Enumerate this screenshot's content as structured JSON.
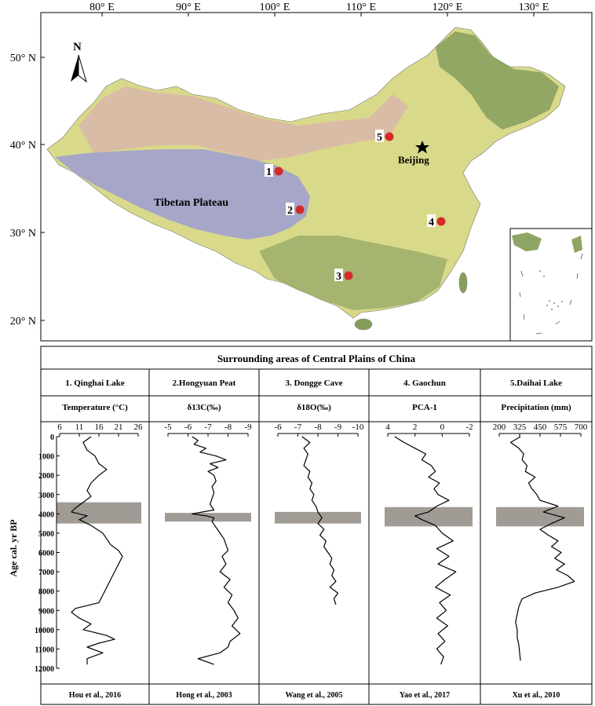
{
  "map": {
    "lon_labels": [
      "80° E",
      "90° E",
      "100° E",
      "110° E",
      "120° E",
      "130° E"
    ],
    "lat_labels": [
      "50° N",
      "40° N",
      "30° N",
      "20° N"
    ],
    "north_label": "N",
    "region_label": "Tibetan Plateau",
    "city_label": "Beijing",
    "sites": [
      {
        "id": "1"
      },
      {
        "id": "2"
      },
      {
        "id": "3"
      },
      {
        "id": "4"
      },
      {
        "id": "5"
      }
    ],
    "colors": {
      "site_marker": "#d42a2a",
      "ocean": "#ffffff",
      "lowland": "#d9d98a",
      "plateau": "#9fa0c8",
      "desert": "#d9b9a6",
      "forest": "#7f9a58"
    }
  },
  "panel": {
    "title": "Surrounding areas of Central Plains of China",
    "y_axis_label": "Age cal. yr BP",
    "highlight_color": "#a09b95"
  },
  "chart_data": [
    {
      "type": "line",
      "site": "1. Qinghai  Lake",
      "xlabel": "Temperature (°C)",
      "source": "Hou et al., 2016",
      "x_ticks": [
        "6",
        "11",
        "16",
        "21",
        "26"
      ],
      "xlim": [
        6,
        26
      ],
      "x_reversed": false,
      "y_ticks": [
        "0",
        "1000",
        "2000",
        "3000",
        "4000",
        "5000",
        "6000",
        "7000",
        "8000",
        "9000",
        "10000",
        "11000",
        "12000"
      ],
      "ylim": [
        0,
        12000
      ],
      "highlight": [
        3400,
        4500
      ],
      "age": [
        0,
        300,
        700,
        1000,
        1400,
        1700,
        2000,
        2400,
        2800,
        3100,
        3400,
        3700,
        3900,
        4100,
        4300,
        4600,
        5000,
        5300,
        5600,
        5900,
        6200,
        6600,
        7000,
        7400,
        7800,
        8200,
        8600,
        8900,
        9100,
        9400,
        9700,
        10000,
        10300,
        10500,
        10700,
        10900,
        11200,
        11500,
        11800
      ],
      "values": [
        14,
        12,
        13,
        15,
        16,
        18,
        16,
        14,
        13,
        14,
        12,
        10,
        9,
        13,
        11,
        14,
        17,
        18,
        19,
        21,
        22,
        21,
        20,
        19,
        18,
        17,
        16,
        10,
        9,
        11,
        14,
        12,
        18,
        20,
        16,
        13,
        17,
        13,
        13
      ]
    },
    {
      "type": "line",
      "site": "2.Hongyuan Peat",
      "xlabel": "δ13C(‰)",
      "source": "Hong et al., 2003",
      "x_ticks": [
        "-5",
        "-6",
        "-7",
        "-8",
        "-9"
      ],
      "xlim": [
        -5,
        -9
      ],
      "x_reversed": true,
      "y_ticks": [
        "0",
        "1000",
        "2000",
        "3000",
        "4000",
        "5000",
        "6000",
        "7000",
        "8000",
        "9000",
        "10000",
        "11000",
        "12000"
      ],
      "ylim": [
        0,
        12000
      ],
      "highlight": [
        3950,
        4400
      ],
      "age": [
        0,
        200,
        400,
        600,
        800,
        1000,
        1200,
        1400,
        1600,
        1800,
        2000,
        2300,
        2600,
        2900,
        3200,
        3500,
        3800,
        4000,
        4100,
        4200,
        4400,
        4700,
        5000,
        5300,
        5600,
        5900,
        6200,
        6600,
        7000,
        7400,
        7800,
        8200,
        8600,
        9000,
        9400,
        9800,
        10200,
        10600,
        10900,
        11200,
        11500,
        11800
      ],
      "values": [
        -6.2,
        -6.5,
        -6.3,
        -6.9,
        -6.6,
        -7.4,
        -7.9,
        -7.1,
        -7.5,
        -7.0,
        -7.3,
        -7.4,
        -7.2,
        -7.3,
        -7.2,
        -7.1,
        -7.3,
        -6.2,
        -6.9,
        -7.3,
        -7.2,
        -7.4,
        -7.6,
        -7.8,
        -7.9,
        -8.0,
        -7.7,
        -7.9,
        -7.6,
        -8.1,
        -7.8,
        -8.2,
        -8.0,
        -8.3,
        -8.5,
        -8.2,
        -8.6,
        -8.1,
        -8.0,
        -7.6,
        -6.5,
        -7.3
      ]
    },
    {
      "type": "line",
      "site": "3. Dongge Cave",
      "xlabel": "δ18O(‰)",
      "source": "Wang  et al., 2005",
      "x_ticks": [
        "-6",
        "-7",
        "-8",
        "-9",
        "-10"
      ],
      "xlim": [
        -6,
        -10
      ],
      "x_reversed": true,
      "y_ticks": [
        "0",
        "1000",
        "2000",
        "3000",
        "4000",
        "5000",
        "6000",
        "7000",
        "8000",
        "9000",
        "10000",
        "11000",
        "12000"
      ],
      "ylim": [
        0,
        12000
      ],
      "highlight": [
        3900,
        4500
      ],
      "age": [
        0,
        300,
        600,
        900,
        1200,
        1500,
        1800,
        2100,
        2400,
        2700,
        3000,
        3300,
        3600,
        3900,
        4200,
        4500,
        4800,
        5100,
        5400,
        5700,
        6000,
        6300,
        6600,
        6900,
        7200,
        7500,
        7800,
        8100,
        8400,
        8700
      ],
      "values": [
        -7.2,
        -7.6,
        -7.3,
        -7.5,
        -7.4,
        -7.3,
        -7.6,
        -7.5,
        -7.7,
        -7.6,
        -7.8,
        -7.7,
        -7.9,
        -8.0,
        -8.2,
        -8.0,
        -8.3,
        -8.1,
        -8.4,
        -8.3,
        -8.5,
        -8.7,
        -8.6,
        -8.8,
        -8.7,
        -8.9,
        -8.6,
        -9.0,
        -8.8,
        -8.9
      ]
    },
    {
      "type": "line",
      "site": "4. Gaochun",
      "xlabel": "PCA-1",
      "source": "Yao et al., 2017",
      "x_ticks": [
        "4",
        "2",
        "0",
        "-2"
      ],
      "xlim": [
        4,
        -2
      ],
      "x_reversed": true,
      "y_ticks": [
        "0",
        "1000",
        "2000",
        "3000",
        "4000",
        "5000",
        "6000",
        "7000",
        "8000",
        "9000",
        "10000",
        "11000",
        "12000"
      ],
      "ylim": [
        0,
        12000
      ],
      "highlight": [
        3650,
        4650
      ],
      "age": [
        0,
        300,
        600,
        900,
        1200,
        1500,
        1800,
        2100,
        2400,
        2700,
        3000,
        3300,
        3600,
        3900,
        4100,
        4300,
        4600,
        5000,
        5400,
        5800,
        6200,
        6600,
        7000,
        7400,
        7800,
        8200,
        8600,
        9000,
        9400,
        9800,
        10200,
        10600,
        11000,
        11400,
        11800
      ],
      "values": [
        3.5,
        2.8,
        2.0,
        1.2,
        1.5,
        0.8,
        0.5,
        1.0,
        0.2,
        0.6,
        0.3,
        -0.5,
        0.4,
        1.0,
        2.0,
        1.5,
        0.5,
        0.0,
        -0.8,
        0.4,
        -0.5,
        0.3,
        -1.0,
        -0.2,
        0.5,
        -0.6,
        0.2,
        -0.3,
        0.4,
        -0.4,
        0.3,
        -0.2,
        0.4,
        -0.1,
        0.1
      ]
    },
    {
      "type": "line",
      "site": "5.Daihai Lake",
      "xlabel": "Precipitation (mm)",
      "source": "Xu et al., 2010",
      "x_ticks": [
        "200",
        "325",
        "450",
        "575",
        "700"
      ],
      "xlim": [
        200,
        700
      ],
      "x_reversed": false,
      "y_ticks": [
        "0",
        "1000",
        "2000",
        "3000",
        "4000",
        "5000",
        "6000",
        "7000",
        "8000",
        "9000",
        "10000",
        "11000",
        "12000"
      ],
      "ylim": [
        0,
        12000
      ],
      "highlight": [
        3650,
        4650
      ],
      "age": [
        0,
        300,
        600,
        900,
        1200,
        1500,
        1800,
        2100,
        2400,
        2700,
        3000,
        3300,
        3600,
        3900,
        4200,
        4500,
        4800,
        5100,
        5400,
        5700,
        6000,
        6300,
        6600,
        6900,
        7200,
        7500,
        7800,
        8100,
        8400,
        8800,
        9200,
        9600,
        10000,
        10400,
        10800,
        11200,
        11600
      ],
      "values": [
        330,
        270,
        320,
        350,
        340,
        370,
        360,
        420,
        380,
        400,
        430,
        450,
        560,
        470,
        600,
        520,
        450,
        500,
        560,
        520,
        580,
        540,
        600,
        550,
        620,
        660,
        560,
        420,
        340,
        320,
        310,
        300,
        310,
        310,
        320,
        325,
        330
      ]
    }
  ]
}
